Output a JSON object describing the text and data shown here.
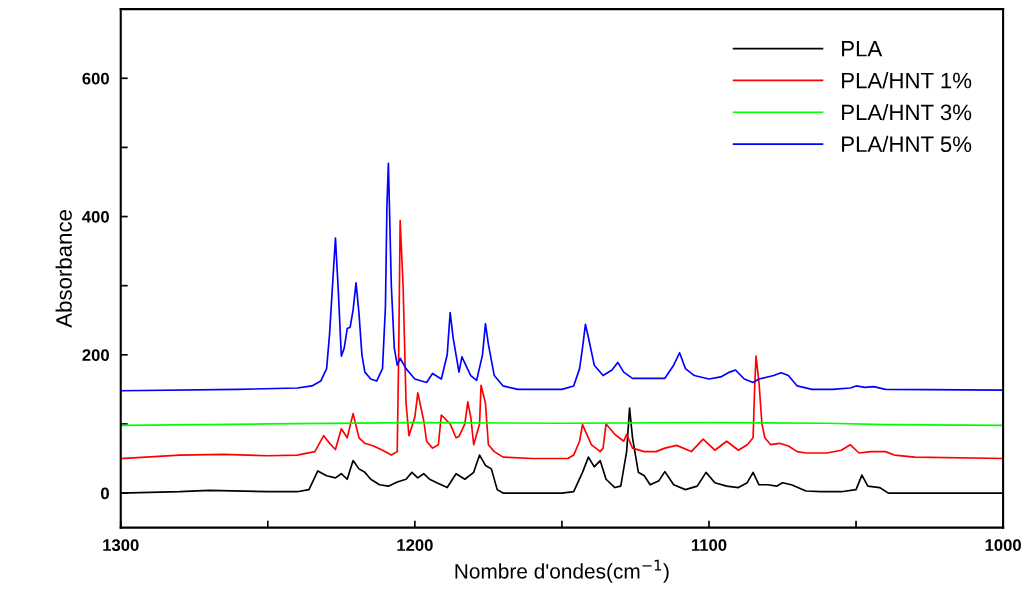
{
  "chart_data": {
    "type": "line",
    "xlabel": "Nombre d'ondes(cm$^{−1}$)",
    "ylabel": "Absorbance",
    "xlim": [
      1300,
      1000
    ],
    "ylim": [
      -50,
      700
    ],
    "xticks": [
      1300,
      {
        "value": 1250,
        "label": null
      },
      1200,
      {
        "value": 1150,
        "label": null
      },
      1100,
      {
        "value": 1050,
        "label": null
      },
      1000
    ],
    "yticks": [
      0,
      {
        "value": 100,
        "label": null
      },
      200,
      {
        "value": 300,
        "label": null
      },
      400,
      {
        "value": 500,
        "label": null
      },
      600
    ],
    "grid": false,
    "legend": "top right",
    "marker": "none",
    "line_style": "solid",
    "series": [
      {
        "name": "PLA",
        "color": "#000000",
        "x": [
          1300,
          1280,
          1270,
          1250,
          1240,
          1236,
          1233,
          1230,
          1227,
          1225,
          1223,
          1221,
          1219,
          1217,
          1215,
          1212,
          1209,
          1206,
          1203,
          1201,
          1199,
          1197,
          1195,
          1192,
          1189,
          1186,
          1183,
          1180,
          1178,
          1176,
          1174,
          1172,
          1170,
          1150,
          1146,
          1143,
          1141,
          1139,
          1137,
          1135,
          1132,
          1130,
          1128,
          1127,
          1126,
          1124,
          1122,
          1120,
          1117,
          1115,
          1112,
          1108,
          1104,
          1101,
          1098,
          1094,
          1090,
          1087,
          1085,
          1083,
          1080,
          1077,
          1075,
          1072,
          1067,
          1062,
          1055,
          1050,
          1048,
          1046,
          1042,
          1039,
          1000
        ],
        "values": [
          0,
          2,
          4,
          2,
          2,
          5,
          32,
          25,
          22,
          28,
          20,
          47,
          35,
          30,
          20,
          12,
          10,
          16,
          20,
          30,
          22,
          28,
          20,
          14,
          8,
          28,
          20,
          30,
          55,
          40,
          35,
          5,
          0,
          0,
          2,
          30,
          52,
          38,
          47,
          20,
          8,
          10,
          60,
          123,
          80,
          30,
          25,
          12,
          18,
          31,
          12,
          5,
          10,
          30,
          15,
          10,
          8,
          15,
          30,
          12,
          12,
          10,
          15,
          12,
          3,
          2,
          2,
          5,
          26,
          10,
          8,
          0,
          0
        ]
      },
      {
        "name": "PLA/HNT 1%",
        "color": "#ff0000",
        "x": [
          1300,
          1280,
          1265,
          1250,
          1240,
          1234,
          1231,
          1229,
          1227,
          1225,
          1223,
          1221,
          1219,
          1217,
          1214,
          1211,
          1208,
          1206,
          1205.5,
          1205,
          1204,
          1203,
          1202,
          1200,
          1199,
          1197,
          1196,
          1194,
          1192,
          1191,
          1188,
          1186,
          1185,
          1183,
          1182,
          1181,
          1180,
          1178,
          1177.5,
          1176,
          1175,
          1173,
          1170,
          1160,
          1148,
          1146,
          1144,
          1143,
          1140,
          1137,
          1136,
          1135,
          1132,
          1129,
          1128,
          1126,
          1122,
          1118,
          1115,
          1111,
          1106,
          1102,
          1098,
          1094,
          1090,
          1087,
          1085,
          1084.5,
          1084,
          1083,
          1082,
          1081,
          1079,
          1076,
          1073,
          1070,
          1067,
          1060,
          1055,
          1052,
          1049,
          1045,
          1040,
          1037,
          1030,
          1000
        ],
        "values": [
          50,
          55,
          56,
          54,
          55,
          60,
          83,
          72,
          63,
          93,
          80,
          115,
          80,
          72,
          68,
          62,
          55,
          60,
          200,
          394,
          300,
          130,
          83,
          110,
          145,
          105,
          75,
          65,
          70,
          113,
          100,
          80,
          82,
          100,
          132,
          110,
          70,
          100,
          156,
          130,
          70,
          60,
          52,
          50,
          50,
          55,
          75,
          99,
          70,
          60,
          65,
          100,
          85,
          75,
          85,
          65,
          60,
          60,
          65,
          69,
          60,
          78,
          62,
          75,
          62,
          70,
          80,
          150,
          198,
          160,
          100,
          80,
          70,
          72,
          68,
          60,
          58,
          58,
          62,
          70,
          58,
          60,
          60,
          55,
          52,
          50
        ]
      },
      {
        "name": "PLA/HNT 3%",
        "color": "#00ff00",
        "x": [
          1300,
          1250,
          1200,
          1150,
          1100,
          1060,
          1040,
          1000
        ],
        "values": [
          98,
          100,
          102,
          101,
          102,
          101,
          99,
          98
        ]
      },
      {
        "name": "PLA/HNT 5%",
        "color": "#0000ff",
        "x": [
          1300,
          1260,
          1240,
          1235,
          1232,
          1230,
          1229,
          1228,
          1227,
          1226,
          1225,
          1224,
          1223,
          1222,
          1221,
          1220,
          1219,
          1218,
          1217,
          1215,
          1213,
          1211,
          1210,
          1209.5,
          1209,
          1208,
          1207,
          1206,
          1205,
          1203,
          1200,
          1196,
          1194,
          1191,
          1189,
          1188,
          1187,
          1185,
          1184,
          1181,
          1179,
          1177,
          1176,
          1175,
          1173,
          1170,
          1165,
          1150,
          1146,
          1144,
          1143,
          1142,
          1141,
          1139,
          1136,
          1133,
          1131,
          1129,
          1126,
          1115,
          1112,
          1110,
          1108,
          1105,
          1100,
          1096,
          1093,
          1091,
          1088,
          1085,
          1083,
          1078,
          1075.5,
          1073,
          1070,
          1065,
          1058,
          1052,
          1050,
          1047,
          1044,
          1040,
          1000
        ],
        "values": [
          148,
          150,
          152,
          155,
          162,
          180,
          230,
          300,
          369,
          290,
          198,
          210,
          238,
          240,
          265,
          304,
          260,
          200,
          175,
          165,
          162,
          180,
          270,
          415,
          477,
          300,
          210,
          185,
          195,
          180,
          165,
          160,
          173,
          165,
          200,
          261,
          225,
          175,
          197,
          170,
          163,
          200,
          245,
          215,
          170,
          155,
          150,
          150,
          155,
          180,
          210,
          244,
          225,
          185,
          170,
          178,
          189,
          175,
          166,
          166,
          185,
          203,
          180,
          170,
          165,
          168,
          175,
          178,
          165,
          160,
          165,
          170,
          174,
          170,
          155,
          150,
          150,
          152,
          155,
          153,
          154,
          150,
          149
        ]
      }
    ]
  }
}
